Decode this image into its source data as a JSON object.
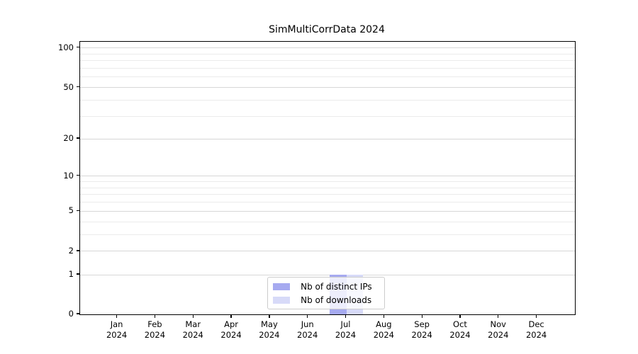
{
  "chart_data": {
    "type": "bar",
    "title": "SimMultiCorrData 2024",
    "x_axis": {
      "months": [
        "Jan",
        "Feb",
        "Mar",
        "Apr",
        "May",
        "Jun",
        "Jul",
        "Aug",
        "Sep",
        "Oct",
        "Nov",
        "Dec"
      ],
      "year": "2024"
    },
    "y_axis": {
      "scale": "log(1+y)",
      "ticks": [
        0,
        1,
        2,
        5,
        10,
        20,
        50,
        100
      ],
      "minor_gridlines": [
        3,
        4,
        6,
        7,
        8,
        9,
        30,
        40,
        60,
        70,
        80,
        90
      ],
      "ylim": [
        0,
        112
      ]
    },
    "series": [
      {
        "name": "Nb of distinct IPs",
        "color": "#a6aaf0",
        "values": [
          0,
          0,
          0,
          0,
          0,
          0,
          1,
          0,
          0,
          0,
          0,
          0
        ]
      },
      {
        "name": "Nb of downloads",
        "color": "#d7daf8",
        "values": [
          0,
          0,
          0,
          0,
          0,
          0,
          1,
          0,
          0,
          0,
          0,
          0
        ]
      }
    ],
    "legend": {
      "position": "lower center",
      "frame_alpha": 0.8
    }
  },
  "colors": {
    "background": "#ffffff",
    "spine": "#000000",
    "grid_major": "#d7d7d7",
    "grid_minor": "#ebebeb"
  }
}
